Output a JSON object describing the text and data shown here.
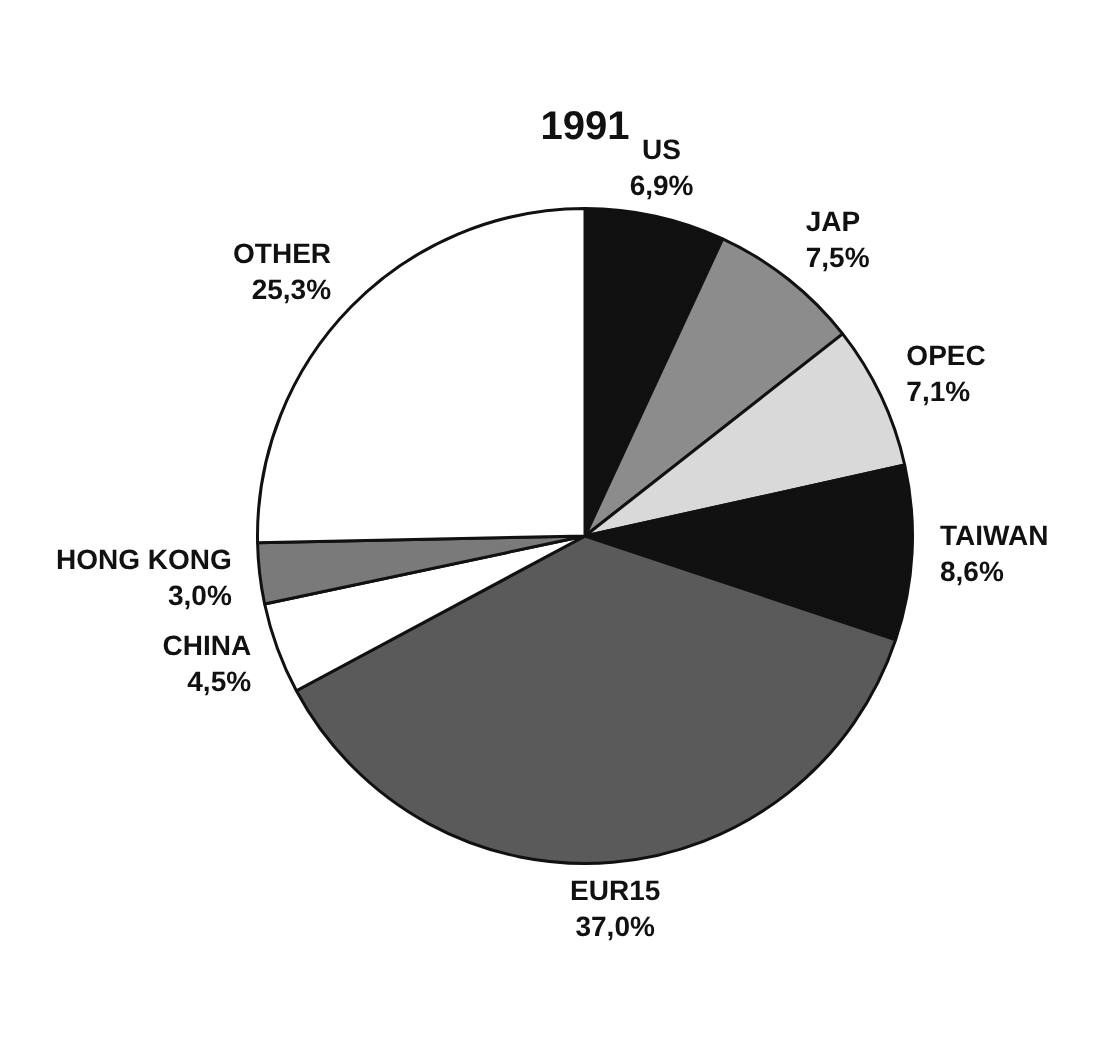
{
  "chart_data": {
    "type": "pie",
    "title": "1991",
    "categories": [
      "US",
      "JAP",
      "OPEC",
      "TAIWAN",
      "EUR15",
      "CHINA",
      "HONG KONG",
      "OTHER"
    ],
    "values": [
      6.9,
      7.5,
      7.1,
      8.6,
      37.0,
      4.5,
      3.0,
      25.3
    ],
    "value_labels": [
      "6,9%",
      "7,5%",
      "7,1%",
      "8,6%",
      "37,0%",
      "4,5%",
      "3,0%",
      "25,3%"
    ],
    "colors": [
      "#111111",
      "#8c8c8c",
      "#d9d9d9",
      "#111111",
      "#5a5a5a",
      "#ffffff",
      "#7a7a7a",
      "#ffffff"
    ],
    "legend": false
  }
}
